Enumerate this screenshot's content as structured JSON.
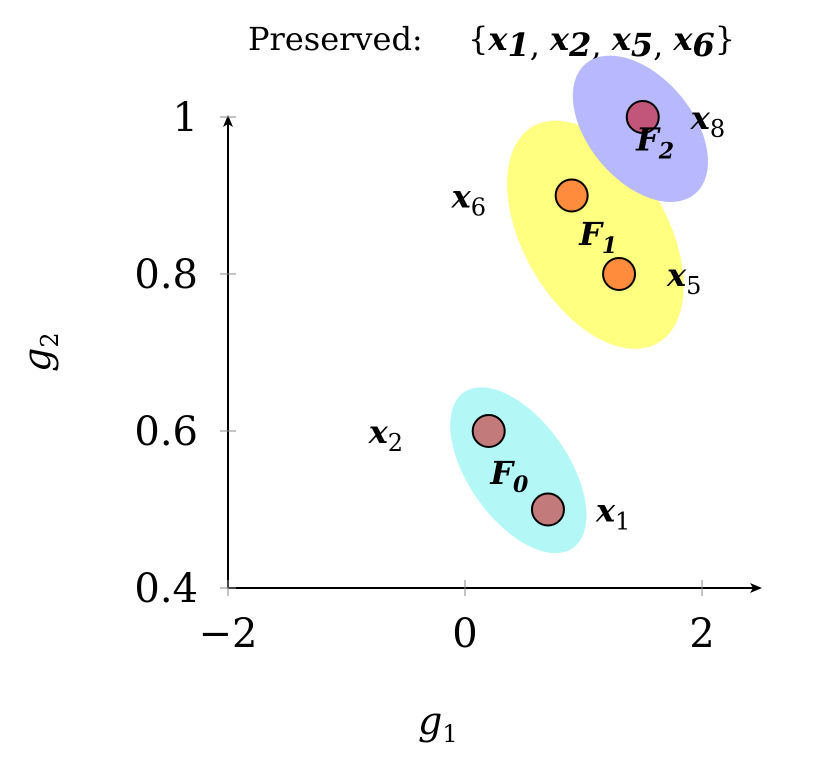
{
  "chart_data": {
    "type": "scatter",
    "title_prefix": "Preserved:",
    "title_set": "{x1, x2, x5, x6}",
    "title_items": [
      {
        "base": "x",
        "sub": "1"
      },
      {
        "base": "x",
        "sub": "2"
      },
      {
        "base": "x",
        "sub": "5"
      },
      {
        "base": "x",
        "sub": "6"
      }
    ],
    "xlabel": {
      "base": "g",
      "sub": "1"
    },
    "ylabel": {
      "base": "g",
      "sub": "2"
    },
    "xlim": [
      -2,
      2
    ],
    "ylim": [
      0.4,
      1
    ],
    "xticks": [
      {
        "value": -2,
        "label": "−2"
      },
      {
        "value": 0,
        "label": "0"
      },
      {
        "value": 2,
        "label": "2"
      }
    ],
    "yticks": [
      {
        "value": 0.4,
        "label": "0.4"
      },
      {
        "value": 0.6,
        "label": "0.6"
      },
      {
        "value": 0.8,
        "label": "0.8"
      },
      {
        "value": 1,
        "label": "1"
      }
    ],
    "grid": false,
    "points": [
      {
        "name": "x1",
        "base": "x",
        "sub": "1",
        "x": 0.7,
        "y": 0.5,
        "color": "#c27a7a",
        "front": "F0",
        "label_side": "right"
      },
      {
        "name": "x2",
        "base": "x",
        "sub": "2",
        "x": 0.2,
        "y": 0.6,
        "color": "#c27a7a",
        "front": "F0",
        "label_side": "left"
      },
      {
        "name": "x5",
        "base": "x",
        "sub": "5",
        "x": 1.3,
        "y": 0.8,
        "color": "#ff8c3c",
        "front": "F1",
        "label_side": "right"
      },
      {
        "name": "x6",
        "base": "x",
        "sub": "6",
        "x": 0.9,
        "y": 0.9,
        "color": "#ff8c3c",
        "front": "F1",
        "label_side": "left"
      },
      {
        "name": "x8",
        "base": "x",
        "sub": "8",
        "x": 1.5,
        "y": 1.0,
        "color": "#c2557a",
        "front": "F2",
        "label_side": "right"
      }
    ],
    "fronts": [
      {
        "name": "F0",
        "base": "F",
        "sub": "0",
        "color": "#b3f7f7",
        "cx": 0.45,
        "cy": 0.55,
        "rx_px": 50,
        "ry_px": 95,
        "angle": -35,
        "label_x": 0.45,
        "label_y": 0.545
      },
      {
        "name": "F1",
        "base": "F",
        "sub": "1",
        "color": "#ffff80",
        "cx": 1.1,
        "cy": 0.85,
        "rx_px": 72,
        "ry_px": 125,
        "angle": -30,
        "label_x": 1.2,
        "label_y": 0.85
      },
      {
        "name": "F2",
        "base": "F",
        "sub": "2",
        "color": "#b8b8ff",
        "cx": 1.48,
        "cy": 0.985,
        "rx_px": 52,
        "ry_px": 85,
        "angle": -40,
        "label_x": 1.68,
        "label_y": 0.97
      }
    ]
  }
}
